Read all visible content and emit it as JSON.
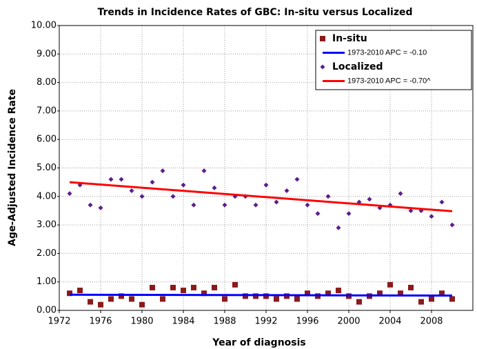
{
  "chart_data": {
    "type": "scatter",
    "title": "Trends in Incidence Rates of GBC: In-situ versus Localized",
    "x_label": "Year of diagnosis",
    "y_label": "Age-Adjusted Incidence Rate",
    "xlim": [
      1972,
      2012
    ],
    "xticks": [
      1972,
      1976,
      1980,
      1984,
      1988,
      1992,
      1996,
      2000,
      2004,
      2008
    ],
    "ylim": [
      0,
      10
    ],
    "yticks": [
      {
        "value": 0,
        "label": "0.00"
      },
      {
        "value": 1,
        "label": "1.00"
      },
      {
        "value": 2,
        "label": "2.00"
      },
      {
        "value": 3,
        "label": "3.00"
      },
      {
        "value": 4,
        "label": "4.00"
      },
      {
        "value": 5,
        "label": "5.00"
      },
      {
        "value": 6,
        "label": "6.00"
      },
      {
        "value": 7,
        "label": "7.00"
      },
      {
        "value": 8,
        "label": "8.00"
      },
      {
        "value": 9,
        "label": "9.00"
      },
      {
        "value": 10,
        "label": "10.00"
      }
    ],
    "grid": true,
    "legend": "upper right",
    "series": [
      {
        "name": "In-situ",
        "mark": "square",
        "color": "#8b1a1a",
        "x": [
          1973,
          1974,
          1975,
          1976,
          1977,
          1978,
          1979,
          1980,
          1981,
          1982,
          1983,
          1984,
          1985,
          1986,
          1987,
          1988,
          1989,
          1990,
          1991,
          1992,
          1993,
          1994,
          1995,
          1996,
          1997,
          1998,
          1999,
          2000,
          2001,
          2002,
          2003,
          2004,
          2005,
          2006,
          2007,
          2008,
          2009,
          2010
        ],
        "values": [
          0.6,
          0.7,
          0.3,
          0.2,
          0.4,
          0.5,
          0.4,
          0.2,
          0.8,
          0.4,
          0.8,
          0.7,
          0.8,
          0.6,
          0.8,
          0.4,
          0.9,
          0.5,
          0.5,
          0.5,
          0.4,
          0.5,
          0.4,
          0.6,
          0.5,
          0.6,
          0.7,
          0.5,
          0.3,
          0.5,
          0.6,
          0.9,
          0.6,
          0.8,
          0.3,
          0.4,
          0.6,
          0.4
        ]
      },
      {
        "name": "1973-2010 APC  = -0.10",
        "mark": "line",
        "color": "#0000ff",
        "x": [
          1973,
          2010
        ],
        "values": [
          0.55,
          0.52
        ]
      },
      {
        "name": "Localized",
        "mark": "diamond",
        "color": "#5b1f8a",
        "x": [
          1973,
          1974,
          1975,
          1976,
          1977,
          1978,
          1979,
          1980,
          1981,
          1982,
          1983,
          1984,
          1985,
          1986,
          1987,
          1988,
          1989,
          1990,
          1991,
          1992,
          1993,
          1994,
          1995,
          1996,
          1997,
          1998,
          1999,
          2000,
          2001,
          2002,
          2003,
          2004,
          2005,
          2006,
          2007,
          2008,
          2009,
          2010
        ],
        "values": [
          4.1,
          4.4,
          3.7,
          3.6,
          4.6,
          4.6,
          4.2,
          4.0,
          4.5,
          4.9,
          4.0,
          4.4,
          3.7,
          4.9,
          4.3,
          3.7,
          4.0,
          4.0,
          3.7,
          4.4,
          3.8,
          4.2,
          4.6,
          3.7,
          3.4,
          4.0,
          2.9,
          3.4,
          3.8,
          3.9,
          3.6,
          3.7,
          4.1,
          3.5,
          3.5,
          3.3,
          3.8,
          3.0
        ]
      },
      {
        "name": "1973-2010 APC  = -0.70^",
        "mark": "line",
        "color": "#ff0000",
        "x": [
          1973,
          2010
        ],
        "values": [
          4.5,
          3.48
        ]
      }
    ]
  }
}
